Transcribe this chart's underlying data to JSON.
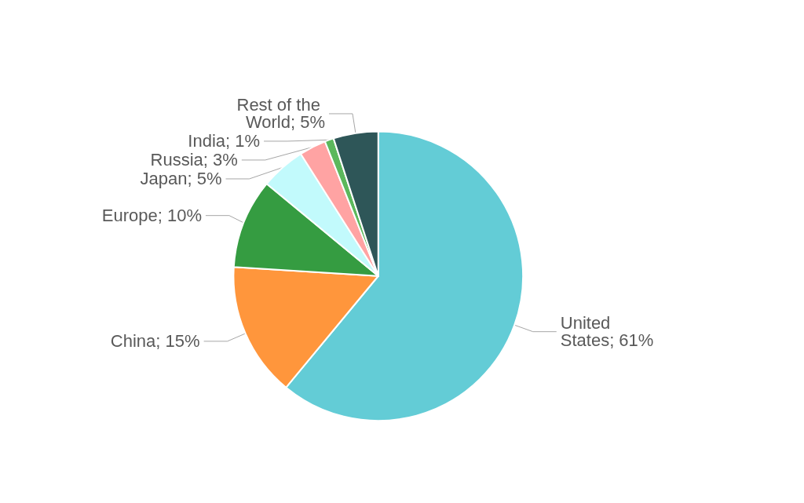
{
  "chart_data": {
    "type": "pie",
    "categories": [
      "United States",
      "China",
      "Europe",
      "Japan",
      "Russia",
      "India",
      "Rest of the World"
    ],
    "values": [
      61,
      15,
      10,
      5,
      3,
      1,
      5
    ],
    "value_labels": [
      "61%",
      "15%",
      "10%",
      "5%",
      "3%",
      "1%",
      "5%"
    ],
    "colors": [
      "#63ccd6",
      "#ff963c",
      "#359c41",
      "#c2fafc",
      "#ffa3a3",
      "#5cb85c",
      "#2e5658"
    ],
    "legend": false
  }
}
